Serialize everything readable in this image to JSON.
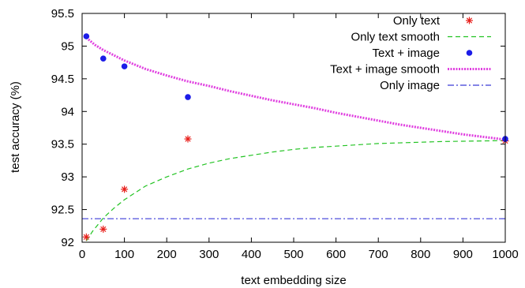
{
  "chart_data": {
    "type": "scatter",
    "title": "",
    "xlabel": "text embedding size",
    "ylabel": "test accuracy (%)",
    "xlim": [
      0,
      1000
    ],
    "ylim": [
      92,
      95.5
    ],
    "xticks": [
      0,
      100,
      200,
      300,
      400,
      500,
      600,
      700,
      800,
      900,
      1000
    ],
    "xtick_labels": [
      "0",
      "100",
      "200",
      "300",
      "400",
      "500",
      "600",
      "700",
      "800",
      "900",
      "1000"
    ],
    "yticks": [
      92,
      92.5,
      93,
      93.5,
      94,
      94.5,
      95,
      95.5
    ],
    "ytick_labels": [
      "92",
      "92.5",
      "93",
      "93.5",
      "94",
      "94.5",
      "95",
      "95.5"
    ],
    "grid": false,
    "legend_position": "top-right",
    "series": [
      {
        "name": "Only text",
        "kind": "points",
        "marker": "asterisk",
        "color": "#e8201c",
        "x": [
          10,
          50,
          100,
          250,
          1000
        ],
        "y": [
          92.08,
          92.2,
          92.81,
          93.58,
          93.55
        ]
      },
      {
        "name": "Only text smooth",
        "kind": "line",
        "dash": "dashed",
        "color": "#22c322",
        "x": [
          10,
          25,
          50,
          75,
          100,
          150,
          200,
          250,
          300,
          350,
          400,
          450,
          500,
          550,
          600,
          650,
          700,
          750,
          800,
          850,
          900,
          950,
          1000
        ],
        "y": [
          92.02,
          92.17,
          92.37,
          92.52,
          92.65,
          92.86,
          93.0,
          93.12,
          93.21,
          93.28,
          93.33,
          93.38,
          93.42,
          93.45,
          93.47,
          93.49,
          93.51,
          93.52,
          93.53,
          93.54,
          93.545,
          93.55,
          93.555
        ]
      },
      {
        "name": "Text + image",
        "kind": "points",
        "marker": "circle",
        "color": "#1c1ce8",
        "x": [
          10,
          50,
          100,
          250,
          1000
        ],
        "y": [
          95.15,
          94.81,
          94.69,
          94.22,
          93.58
        ]
      },
      {
        "name": "Text + image smooth",
        "kind": "line",
        "dash": "dotted-thick",
        "color": "#e040e0",
        "x": [
          10,
          30,
          50,
          75,
          100,
          150,
          200,
          250,
          300,
          350,
          400,
          450,
          500,
          550,
          600,
          650,
          700,
          750,
          800,
          850,
          900,
          950,
          1000
        ],
        "y": [
          95.13,
          95.02,
          94.94,
          94.86,
          94.78,
          94.65,
          94.55,
          94.46,
          94.39,
          94.31,
          94.24,
          94.17,
          94.11,
          94.05,
          93.98,
          93.92,
          93.86,
          93.8,
          93.75,
          93.7,
          93.65,
          93.61,
          93.57
        ]
      },
      {
        "name": "Only image",
        "kind": "line",
        "dash": "dash-dot",
        "color": "#3b3bd8",
        "x": [
          0,
          1000
        ],
        "y": [
          92.36,
          92.36
        ]
      }
    ]
  }
}
